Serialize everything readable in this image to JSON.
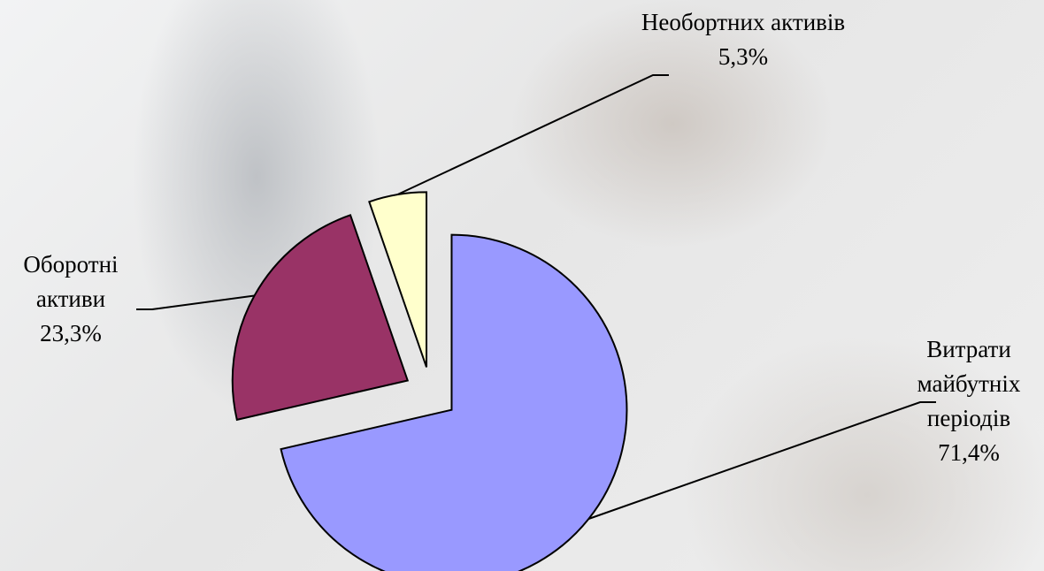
{
  "chart_data": {
    "type": "pie",
    "categories": [
      "Витрати майбутніх періодів",
      "Оборотні активи",
      "Необортних активів"
    ],
    "values": [
      71.4,
      23.3,
      5.3
    ],
    "value_labels": [
      "71,4%",
      "23,3%",
      "5,3%"
    ],
    "colors": [
      "#9999ff",
      "#993366",
      "#ffffcc"
    ]
  }
}
